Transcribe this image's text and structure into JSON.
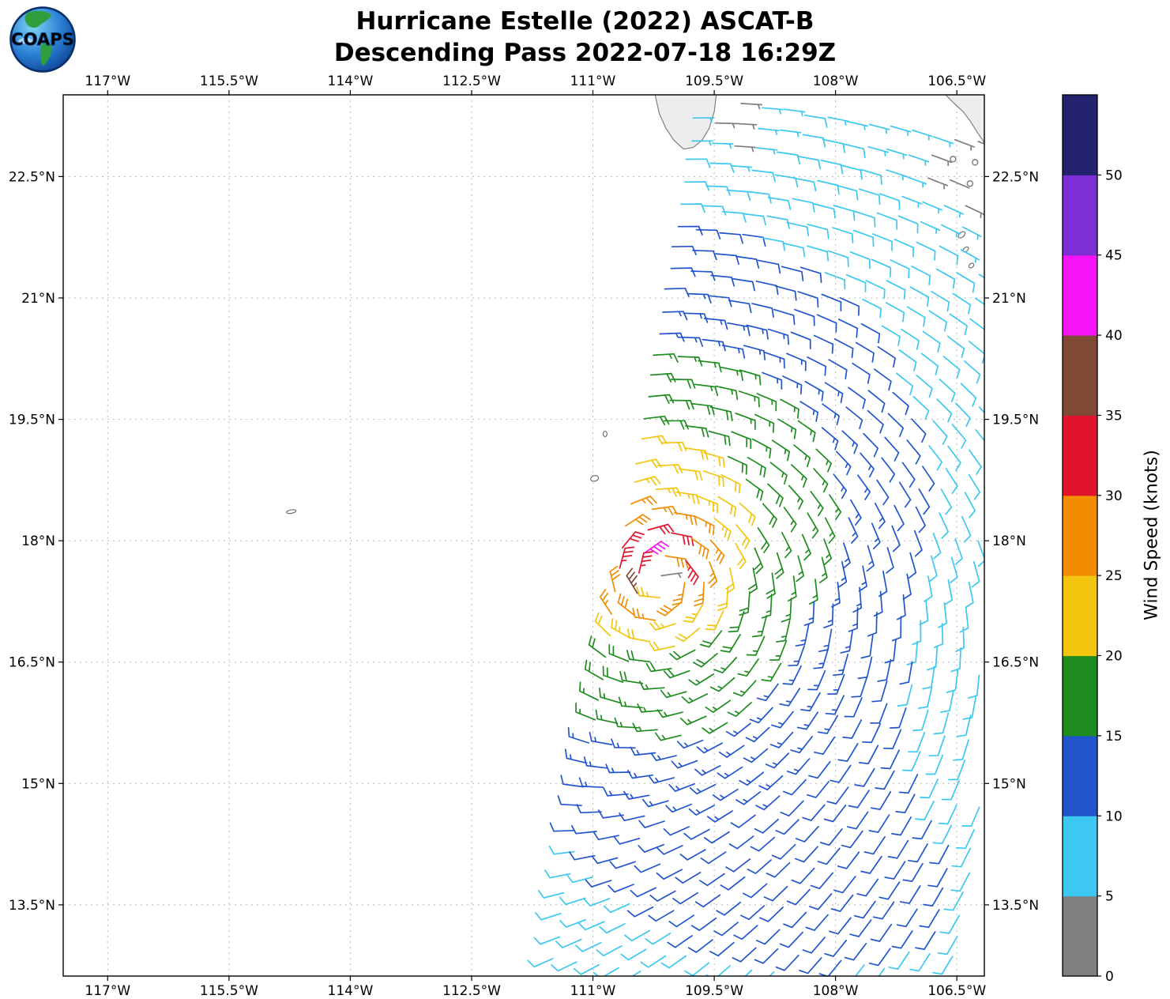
{
  "title": {
    "line1": "Hurricane Estelle (2022) ASCAT-B",
    "line2": "Descending Pass 2022-07-18 16:29Z"
  },
  "logo": {
    "text": "COAPS"
  },
  "axes": {
    "extent": {
      "lon_min": -117.55,
      "lon_max": -106.16,
      "lat_min": 12.62,
      "lat_max": 23.51
    },
    "lon_ticks": [
      {
        "value": -117,
        "label": "117°W"
      },
      {
        "value": -115.5,
        "label": "115.5°W"
      },
      {
        "value": -114,
        "label": "114°W"
      },
      {
        "value": -112.5,
        "label": "112.5°W"
      },
      {
        "value": -111,
        "label": "111°W"
      },
      {
        "value": -109.5,
        "label": "109.5°W"
      },
      {
        "value": -108,
        "label": "108°W"
      },
      {
        "value": -106.5,
        "label": "106.5°W"
      }
    ],
    "lat_ticks": [
      {
        "value": 22.5,
        "label": "22.5°N"
      },
      {
        "value": 21,
        "label": "21°N"
      },
      {
        "value": 19.5,
        "label": "19.5°N"
      },
      {
        "value": 18,
        "label": "18°N"
      },
      {
        "value": 16.5,
        "label": "16.5°N"
      },
      {
        "value": 15,
        "label": "15°N"
      },
      {
        "value": 13.5,
        "label": "13.5°N"
      }
    ]
  },
  "colorbar": {
    "label": "Wind Speed (knots)",
    "max": 55,
    "ticks": [
      0,
      5,
      10,
      15,
      20,
      25,
      30,
      35,
      40,
      45,
      50
    ],
    "colors": [
      "#7f7f7f",
      "#3cc8f0",
      "#2255cc",
      "#1f8c1f",
      "#f2c50f",
      "#f28c00",
      "#e2142d",
      "#7e4a36",
      "#f514f5",
      "#7b2fd4",
      "#22226e"
    ]
  },
  "chart_data": {
    "type": "wind_barb_map",
    "storm": "Hurricane Estelle (2022)",
    "instrument": "ASCAT-B",
    "pass": "Descending",
    "valid_time": "2022-07-18 16:29Z",
    "units": "knots",
    "speed_band_colors": {
      "0-5": "gray",
      "5-10": "cyan",
      "10-15": "blue",
      "15-20": "green",
      "20-25": "yellow",
      "25-30": "orange",
      "30-35": "red",
      "35-40": "brown",
      "40-45": "magenta",
      "45-50": "purple",
      "50-55": "dark navy"
    },
    "swath": {
      "left_edge": [
        [
          -109.78,
          23.51
        ],
        [
          -111.59,
          12.62
        ]
      ],
      "spacing_deg": 0.27,
      "cross_track_cols": 19
    },
    "vortex": {
      "center_lon": -110.15,
      "center_lat": 17.55,
      "vmax_kt": 36,
      "rmax_deg": 0.35,
      "decay_exp_inner": 0.45,
      "decay_break_deg": 2.5,
      "decay_exp_outer": 1.1,
      "asym_dir_deg": 155,
      "asym_mag": 0.1,
      "cap_kt": 39.4
    },
    "background_wind": {
      "u": -2.0,
      "v": -0.5,
      "south_u": 3.0,
      "south_v": 6.0,
      "south_lat": 15.2,
      "south_width": 0.8
    },
    "lulls": [
      [
        -109.3,
        23.15,
        0.45,
        0.6
      ],
      [
        -106.4,
        22.6,
        0.5,
        0.85
      ]
    ],
    "map": {
      "coastlines": [
        {
          "name": "baja-california-tip",
          "fill": "#ededed",
          "points": [
            [
              -110.24,
              23.55
            ],
            [
              -110.18,
              23.28
            ],
            [
              -110.1,
              23.1
            ],
            [
              -110.0,
              22.95
            ],
            [
              -109.88,
              22.84
            ],
            [
              -109.76,
              22.86
            ],
            [
              -109.65,
              22.95
            ],
            [
              -109.56,
              23.1
            ],
            [
              -109.5,
              23.3
            ],
            [
              -109.47,
              23.55
            ]
          ]
        },
        {
          "name": "mexico-mainland-coast",
          "fill": "#ededed",
          "points": [
            [
              -106.68,
              23.55
            ],
            [
              -106.55,
              23.42
            ],
            [
              -106.42,
              23.3
            ],
            [
              -106.33,
              23.18
            ],
            [
              -106.25,
              23.05
            ],
            [
              -106.18,
              22.95
            ],
            [
              -106.1,
              22.8
            ],
            [
              -106.0,
              22.6
            ],
            [
              -106.0,
              23.55
            ]
          ]
        }
      ],
      "islands": [
        {
          "name": "isla-maria-madre",
          "lon": -106.44,
          "lat": 21.78,
          "rx": 5,
          "ry": 3,
          "rot": -40
        },
        {
          "name": "isla-maria-magdalena",
          "lon": -106.39,
          "lat": 21.6,
          "rx": 4,
          "ry": 2.5,
          "rot": -40
        },
        {
          "name": "isla-maria-cleofas",
          "lon": -106.32,
          "lat": 21.4,
          "rx": 3.5,
          "ry": 2.5,
          "rot": -40
        },
        {
          "name": "san-benedicto",
          "lon": -110.85,
          "lat": 19.32,
          "rx": 2.5,
          "ry": 3.5,
          "rot": 0
        },
        {
          "name": "socorro",
          "lon": -110.98,
          "lat": 18.77,
          "rx": 5,
          "ry": 3.5,
          "rot": -15
        },
        {
          "name": "clarion",
          "lon": -114.73,
          "lat": 18.36,
          "rx": 6,
          "ry": 2.2,
          "rot": -10
        }
      ]
    }
  }
}
